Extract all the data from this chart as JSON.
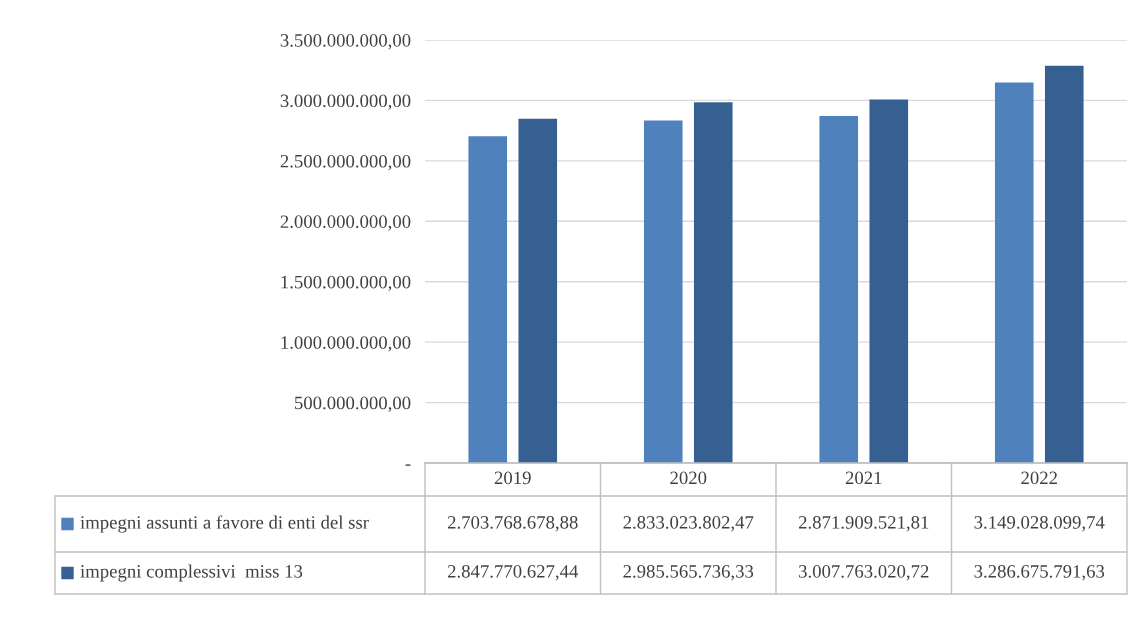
{
  "chart_data": {
    "type": "bar",
    "categories": [
      "2019",
      "2020",
      "2021",
      "2022"
    ],
    "series": [
      {
        "name": "impegni assunti a favore di enti del ssr",
        "color": "#4f81bd",
        "values": [
          2703768678.88,
          2833023802.47,
          2871909521.81,
          3149028099.74
        ],
        "value_labels": [
          "2.703.768.678,88",
          "2.833.023.802,47",
          "2.871.909.521,81",
          "3.149.028.099,74"
        ]
      },
      {
        "name": "impegni complessivi  miss 13",
        "color": "#376092",
        "values": [
          2847770627.44,
          2985565736.33,
          3007763020.72,
          3286675791.63
        ],
        "value_labels": [
          "2.847.770.627,44",
          "2.985.565.736,33",
          "3.007.763.020,72",
          "3.286.675.791,63"
        ]
      }
    ],
    "ylim": [
      0,
      3500000000
    ],
    "yticks": [
      {
        "value": 0,
        "label": "-"
      },
      {
        "value": 500000000,
        "label": "500.000.000,00"
      },
      {
        "value": 1000000000,
        "label": "1.000.000.000,00"
      },
      {
        "value": 1500000000,
        "label": "1.500.000.000,00"
      },
      {
        "value": 2000000000,
        "label": "2.000.000.000,00"
      },
      {
        "value": 2500000000,
        "label": "2.500.000.000,00"
      },
      {
        "value": 3000000000,
        "label": "3.000.000.000,00"
      },
      {
        "value": 3500000000,
        "label": "3.500.000.000,00"
      }
    ],
    "grid": "y",
    "legend": "bottom"
  }
}
